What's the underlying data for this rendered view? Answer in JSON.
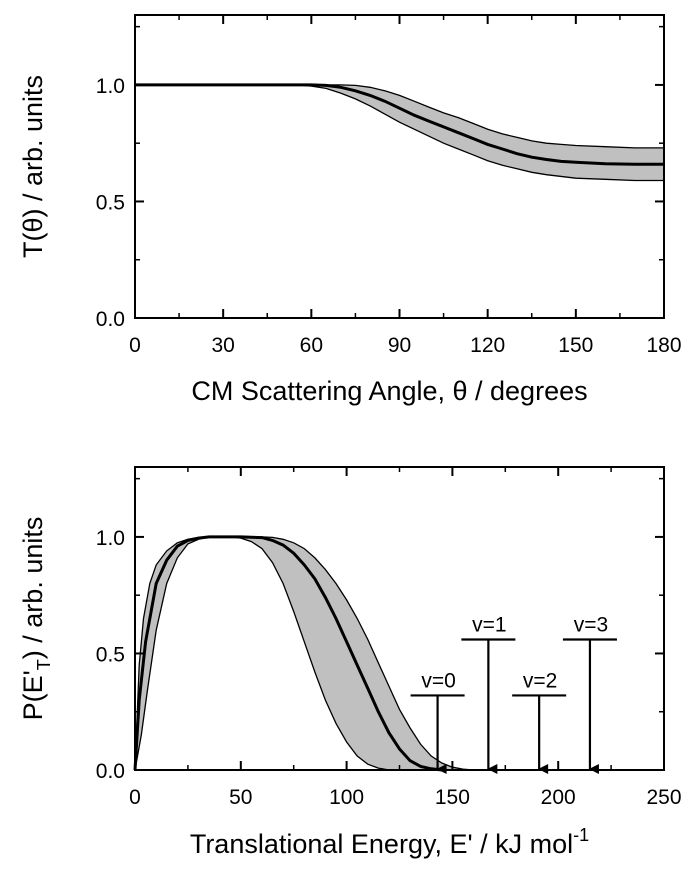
{
  "chart_data": [
    {
      "type": "line",
      "xlabel": "CM Scattering Angle, θ / degrees",
      "ylabel": "T(θ) / arb. units",
      "xlim": [
        0,
        180
      ],
      "ylim": [
        0,
        1.3
      ],
      "xticks": [
        0,
        30,
        60,
        90,
        120,
        150,
        180
      ],
      "xtick_labels": [
        "0",
        "30",
        "60",
        "90",
        "120",
        "150",
        "180"
      ],
      "yticks": [
        0.0,
        0.5,
        1.0
      ],
      "ytick_labels": [
        "0.0",
        "0.5",
        "1.0"
      ],
      "grid": false,
      "series": [
        {
          "role": "best-fit",
          "x": [
            0,
            30,
            60,
            65,
            70,
            75,
            80,
            85,
            90,
            95,
            100,
            105,
            110,
            115,
            120,
            125,
            130,
            135,
            140,
            145,
            150,
            155,
            160,
            170,
            180
          ],
          "y": [
            1.0,
            1.0,
            1.0,
            0.998,
            0.99,
            0.975,
            0.955,
            0.93,
            0.9,
            0.87,
            0.845,
            0.82,
            0.795,
            0.77,
            0.745,
            0.725,
            0.705,
            0.69,
            0.68,
            0.672,
            0.668,
            0.665,
            0.662,
            0.66,
            0.66
          ]
        },
        {
          "role": "upper-bound",
          "x": [
            0,
            30,
            60,
            65,
            70,
            75,
            80,
            85,
            90,
            95,
            100,
            105,
            110,
            115,
            120,
            125,
            130,
            135,
            140,
            145,
            150,
            160,
            170,
            180
          ],
          "y": [
            1.0,
            1.0,
            1.0,
            1.0,
            1.0,
            0.998,
            0.99,
            0.975,
            0.955,
            0.93,
            0.905,
            0.88,
            0.86,
            0.835,
            0.81,
            0.79,
            0.775,
            0.76,
            0.75,
            0.745,
            0.74,
            0.735,
            0.73,
            0.73
          ]
        },
        {
          "role": "lower-bound",
          "x": [
            0,
            30,
            55,
            60,
            65,
            70,
            75,
            80,
            85,
            90,
            95,
            100,
            105,
            110,
            115,
            120,
            125,
            130,
            135,
            140,
            150,
            160,
            170,
            180
          ],
          "y": [
            1.0,
            1.0,
            1.0,
            0.995,
            0.985,
            0.965,
            0.94,
            0.91,
            0.875,
            0.84,
            0.81,
            0.78,
            0.75,
            0.725,
            0.7,
            0.675,
            0.655,
            0.64,
            0.625,
            0.615,
            0.6,
            0.595,
            0.59,
            0.59
          ]
        }
      ]
    },
    {
      "type": "line",
      "xlabel": "Translational Energy, E' / kJ mol",
      "xlabel_sup": "-1",
      "ylabel": "P(E'",
      "ylabel_sub": "T",
      "ylabel_tail": ") / arb. units",
      "xlim": [
        0,
        250
      ],
      "ylim": [
        0,
        1.3
      ],
      "xticks": [
        0,
        50,
        100,
        150,
        200,
        250
      ],
      "xtick_labels": [
        "0",
        "50",
        "100",
        "150",
        "200",
        "250"
      ],
      "yticks": [
        0.0,
        0.5,
        1.0
      ],
      "ytick_labels": [
        "0.0",
        "0.5",
        "1.0"
      ],
      "grid": false,
      "series": [
        {
          "role": "best-fit",
          "x": [
            0,
            2,
            5,
            10,
            15,
            20,
            25,
            30,
            35,
            50,
            60,
            65,
            70,
            75,
            80,
            85,
            90,
            95,
            100,
            105,
            110,
            115,
            120,
            125,
            130,
            135,
            140,
            145
          ],
          "y": [
            0,
            0.3,
            0.55,
            0.8,
            0.9,
            0.96,
            0.985,
            0.995,
            1.0,
            1.0,
            0.997,
            0.985,
            0.965,
            0.93,
            0.88,
            0.82,
            0.74,
            0.65,
            0.55,
            0.45,
            0.35,
            0.25,
            0.16,
            0.09,
            0.04,
            0.015,
            0.005,
            0.0
          ]
        },
        {
          "role": "upper-bound",
          "x": [
            0,
            2,
            4,
            7,
            10,
            15,
            20,
            25,
            30,
            35,
            50,
            60,
            65,
            70,
            75,
            80,
            85,
            90,
            95,
            100,
            105,
            110,
            115,
            120,
            125,
            130,
            135,
            140,
            145,
            150,
            155,
            160
          ],
          "y": [
            0,
            0.45,
            0.65,
            0.8,
            0.88,
            0.94,
            0.975,
            0.99,
            0.998,
            1.0,
            1.0,
            1.0,
            0.998,
            0.99,
            0.975,
            0.95,
            0.91,
            0.86,
            0.8,
            0.73,
            0.65,
            0.56,
            0.46,
            0.36,
            0.26,
            0.18,
            0.11,
            0.06,
            0.03,
            0.012,
            0.004,
            0.0
          ]
        },
        {
          "role": "lower-bound",
          "x": [
            0,
            3,
            6,
            10,
            15,
            20,
            25,
            30,
            35,
            45,
            50,
            55,
            60,
            65,
            70,
            75,
            80,
            85,
            90,
            95,
            100,
            105,
            110,
            115,
            120,
            130
          ],
          "y": [
            0,
            0.15,
            0.35,
            0.6,
            0.8,
            0.91,
            0.97,
            0.99,
            1.0,
            1.0,
            0.995,
            0.98,
            0.95,
            0.89,
            0.8,
            0.68,
            0.55,
            0.42,
            0.3,
            0.2,
            0.12,
            0.06,
            0.025,
            0.008,
            0.0,
            0.0
          ]
        }
      ],
      "annotations": [
        {
          "label": "v=0",
          "x": 143,
          "top": 0.32
        },
        {
          "label": "v=1",
          "x": 167,
          "top": 0.56
        },
        {
          "label": "v=2",
          "x": 191,
          "top": 0.32
        },
        {
          "label": "v=3",
          "x": 215,
          "top": 0.56
        }
      ]
    }
  ]
}
